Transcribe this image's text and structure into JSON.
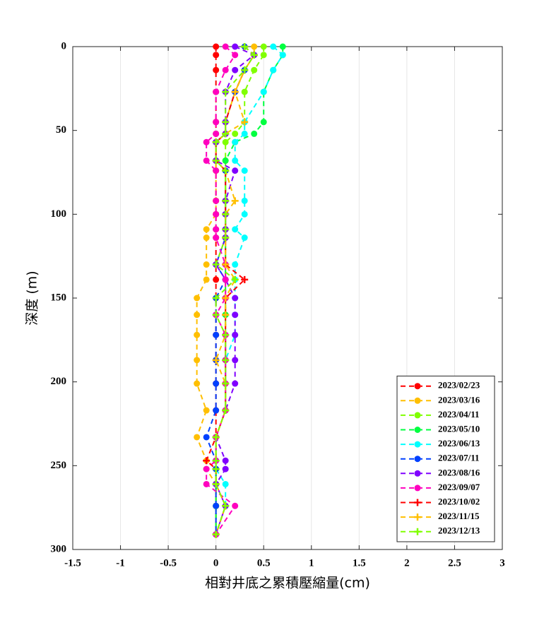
{
  "chart_data": {
    "type": "line",
    "x_label": "相對井底之累積壓縮量(cm)",
    "y_label": "深度 (m)",
    "y": [
      0,
      5,
      14,
      27,
      45,
      52,
      57,
      68,
      74,
      92,
      100,
      109,
      114,
      130,
      139,
      150,
      160,
      172,
      187,
      201,
      217,
      233,
      247,
      252,
      261,
      274,
      291
    ],
    "xlim": [
      -1.5,
      3
    ],
    "xticks": [
      -1.5,
      -1,
      -0.5,
      0,
      0.5,
      1,
      1.5,
      2,
      2.5,
      3
    ],
    "ylim": [
      0,
      300
    ],
    "yticks": [
      0,
      50,
      100,
      150,
      200,
      250,
      300
    ],
    "y_reversed": true,
    "grid": true,
    "legend": "lower right",
    "series": [
      {
        "name": "2023/02/23",
        "color": "#ff0000",
        "marker": "circle",
        "values": [
          0,
          0,
          0,
          0,
          0,
          0,
          0,
          0,
          0,
          0,
          0,
          0,
          0,
          0,
          0,
          0,
          0,
          0,
          0,
          0,
          0,
          0,
          0,
          0,
          0,
          0,
          0
        ]
      },
      {
        "name": "2023/03/16",
        "color": "#ffbf00",
        "marker": "circle",
        "values": [
          0.4,
          0.4,
          0.3,
          0.2,
          0.1,
          0.1,
          0,
          0,
          0,
          0,
          0,
          -0.1,
          -0.1,
          -0.1,
          -0.1,
          -0.2,
          -0.2,
          -0.2,
          -0.2,
          -0.2,
          -0.1,
          -0.2,
          -0.1,
          -0.1,
          0,
          0,
          0
        ]
      },
      {
        "name": "2023/04/11",
        "color": "#80ff00",
        "marker": "circle",
        "values": [
          0.5,
          0.5,
          0.4,
          0.3,
          0.3,
          0.2,
          0.1,
          0.1,
          0.1,
          0.1,
          0.1,
          0.1,
          0.1,
          0.1,
          0.1,
          0.1,
          0.1,
          0.1,
          0.1,
          0.1,
          0.1,
          0,
          0,
          0,
          0,
          0,
          0
        ]
      },
      {
        "name": "2023/05/10",
        "color": "#00ff40",
        "marker": "circle",
        "values": [
          0.7,
          0.7,
          0.6,
          0.5,
          0.5,
          0.4,
          0.2,
          0.1,
          0.1,
          0.1,
          0.1,
          0.1,
          0.1,
          0.1,
          0.1,
          0.1,
          0.1,
          0.1,
          0.1,
          0.1,
          0.1,
          0,
          0,
          0,
          0,
          0,
          0
        ]
      },
      {
        "name": "2023/06/13",
        "color": "#00ffff",
        "marker": "circle",
        "values": [
          0.6,
          0.7,
          0.6,
          0.5,
          0.3,
          0.3,
          0.2,
          0.2,
          0.3,
          0.3,
          0.3,
          0.2,
          0.3,
          0.2,
          0.2,
          0.2,
          0.2,
          0.2,
          0.1,
          0.1,
          0.1,
          0,
          0,
          0,
          0.1,
          0.1,
          0
        ]
      },
      {
        "name": "2023/07/11",
        "color": "#0040ff",
        "marker": "circle",
        "values": [
          0.3,
          0.4,
          0.3,
          0.2,
          0.1,
          0.1,
          0,
          0,
          0.1,
          0.1,
          0.1,
          0.1,
          0.1,
          0,
          0.1,
          0,
          0,
          0,
          0,
          0,
          0,
          -0.1,
          0,
          0,
          0,
          0,
          0
        ]
      },
      {
        "name": "2023/08/16",
        "color": "#8000ff",
        "marker": "circle",
        "values": [
          0.2,
          0.4,
          0.2,
          0.1,
          0.1,
          0.1,
          0,
          0,
          0.2,
          0.1,
          0.1,
          0.1,
          0.1,
          0,
          0.1,
          0.2,
          0.2,
          0.2,
          0.2,
          0.2,
          0.1,
          0,
          0.1,
          0.1,
          0,
          0.1,
          0
        ]
      },
      {
        "name": "2023/09/07",
        "color": "#ff00bf",
        "marker": "circle",
        "values": [
          0.1,
          0.2,
          0.1,
          0,
          0,
          0,
          -0.1,
          -0.1,
          0,
          0,
          0,
          0,
          0,
          0.1,
          0.1,
          0.1,
          0,
          0.1,
          0.1,
          0.1,
          0.1,
          0,
          0,
          -0.1,
          -0.1,
          0.2,
          0
        ]
      },
      {
        "name": "2023/10/02",
        "color": "#ff0000",
        "marker": "plus",
        "values": [
          0.3,
          0.4,
          0.3,
          0.2,
          0.1,
          0.1,
          0,
          0,
          0.1,
          0.1,
          0.1,
          0.1,
          0.1,
          0.1,
          0.3,
          0.1,
          0.1,
          0.1,
          0.1,
          0.1,
          0.1,
          0,
          -0.1,
          0,
          0,
          0.1,
          0
        ]
      },
      {
        "name": "2023/11/15",
        "color": "#ffbf00",
        "marker": "plus",
        "values": [
          0.3,
          0.4,
          0.3,
          0.2,
          0.3,
          0.1,
          0,
          0,
          0.1,
          0.2,
          0.1,
          0.1,
          0.1,
          0.1,
          0.2,
          0.1,
          0.1,
          0.1,
          0,
          0.1,
          0.1,
          0,
          0,
          0,
          0,
          0.1,
          0
        ]
      },
      {
        "name": "2023/12/13",
        "color": "#80ff00",
        "marker": "plus",
        "values": [
          0.3,
          0.4,
          0.3,
          0.1,
          0.1,
          0.1,
          0,
          0,
          0.1,
          0.1,
          0.1,
          0.1,
          0.1,
          0,
          0.2,
          0,
          0,
          0.1,
          0.1,
          0.1,
          0.1,
          0,
          0,
          0,
          0,
          0.1,
          0
        ]
      }
    ]
  }
}
